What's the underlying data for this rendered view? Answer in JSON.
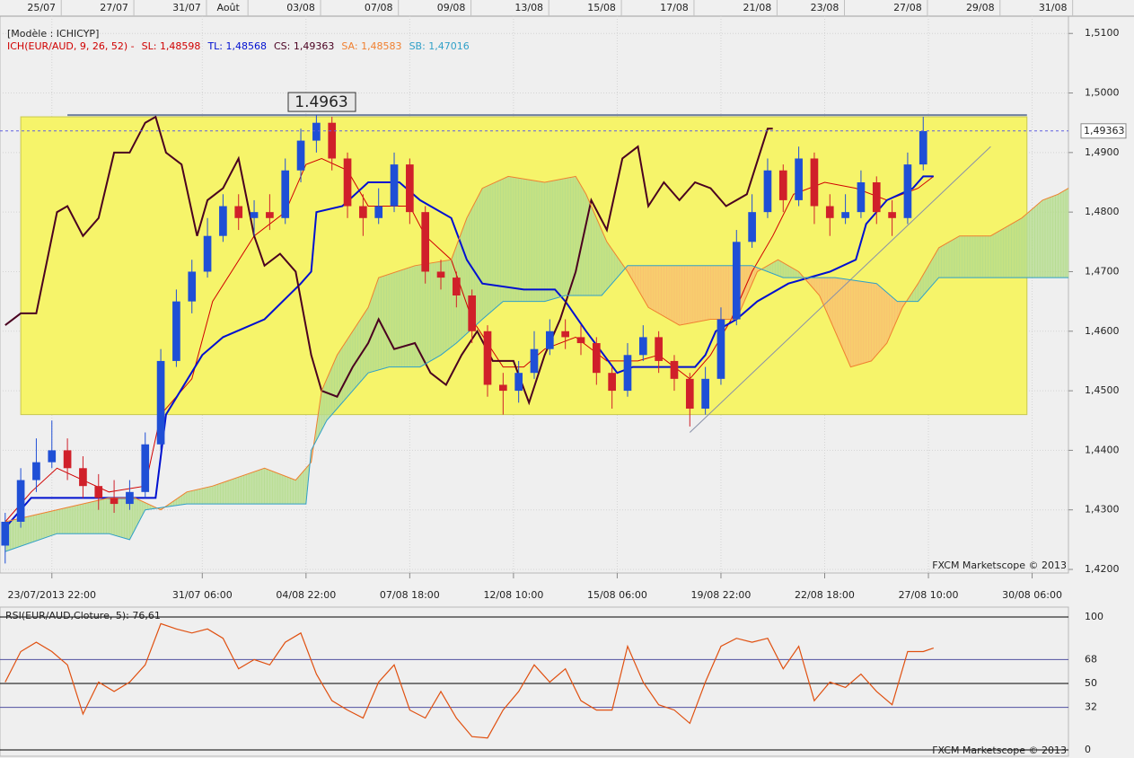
{
  "chart_data": [
    {
      "type": "candlestick",
      "model": "[Modèle : ICHICYP]",
      "indicator": "ICH(EUR/AUD, 9, 26, 52) -",
      "indicator_color": "#d00000",
      "watermark": "FXCM Marketscope © 2013",
      "up_color": "#1f4fd6",
      "down_color": "#d0202a",
      "x": [
        0,
        3,
        6,
        9,
        12,
        15,
        18,
        21,
        24,
        27,
        30,
        33,
        36,
        39,
        42,
        45,
        48,
        51,
        54,
        57,
        60,
        63,
        66,
        69,
        72,
        75,
        78,
        81,
        84,
        87,
        90,
        93,
        96,
        99,
        102,
        105,
        108,
        111,
        114,
        117,
        120,
        123,
        126,
        129,
        132,
        135,
        138,
        141,
        144,
        147,
        150,
        153,
        156,
        159,
        162,
        165,
        168,
        171,
        174,
        177
      ],
      "open": [
        1.424,
        1.428,
        1.435,
        1.438,
        1.44,
        1.437,
        1.434,
        1.432,
        1.431,
        1.433,
        1.441,
        1.455,
        1.465,
        1.47,
        1.476,
        1.481,
        1.479,
        1.48,
        1.479,
        1.487,
        1.492,
        1.495,
        1.489,
        1.481,
        1.479,
        1.481,
        1.488,
        1.48,
        1.47,
        1.469,
        1.466,
        1.46,
        1.451,
        1.45,
        1.453,
        1.457,
        1.46,
        1.459,
        1.458,
        1.453,
        1.45,
        1.456,
        1.459,
        1.455,
        1.452,
        1.447,
        1.452,
        1.462,
        1.475,
        1.48,
        1.487,
        1.482,
        1.489,
        1.481,
        1.479,
        1.48,
        1.485,
        1.48,
        1.479,
        1.488
      ],
      "high": [
        1.4295,
        1.437,
        1.442,
        1.445,
        1.442,
        1.439,
        1.436,
        1.435,
        1.435,
        1.443,
        1.457,
        1.467,
        1.472,
        1.479,
        1.483,
        1.483,
        1.482,
        1.483,
        1.489,
        1.494,
        1.4963,
        1.496,
        1.49,
        1.483,
        1.484,
        1.49,
        1.489,
        1.481,
        1.472,
        1.47,
        1.467,
        1.461,
        1.453,
        1.455,
        1.46,
        1.462,
        1.462,
        1.461,
        1.459,
        1.454,
        1.458,
        1.461,
        1.46,
        1.456,
        1.453,
        1.454,
        1.464,
        1.477,
        1.483,
        1.489,
        1.488,
        1.491,
        1.49,
        1.483,
        1.483,
        1.487,
        1.486,
        1.482,
        1.49,
        1.496
      ],
      "low": [
        1.421,
        1.427,
        1.433,
        1.437,
        1.435,
        1.432,
        1.43,
        1.4295,
        1.43,
        1.432,
        1.44,
        1.454,
        1.463,
        1.469,
        1.475,
        1.477,
        1.476,
        1.477,
        1.478,
        1.485,
        1.49,
        1.487,
        1.479,
        1.476,
        1.478,
        1.48,
        1.478,
        1.468,
        1.467,
        1.464,
        1.458,
        1.449,
        1.446,
        1.448,
        1.452,
        1.456,
        1.457,
        1.456,
        1.451,
        1.447,
        1.449,
        1.455,
        1.453,
        1.45,
        1.444,
        1.446,
        1.451,
        1.461,
        1.474,
        1.479,
        1.48,
        1.481,
        1.478,
        1.476,
        1.478,
        1.479,
        1.478,
        1.476,
        1.478,
        1.487
      ],
      "close": [
        1.428,
        1.435,
        1.438,
        1.44,
        1.437,
        1.434,
        1.432,
        1.431,
        1.433,
        1.441,
        1.455,
        1.465,
        1.47,
        1.476,
        1.481,
        1.479,
        1.48,
        1.479,
        1.487,
        1.492,
        1.495,
        1.489,
        1.481,
        1.479,
        1.481,
        1.488,
        1.48,
        1.47,
        1.469,
        1.466,
        1.46,
        1.451,
        1.45,
        1.453,
        1.457,
        1.46,
        1.459,
        1.458,
        1.453,
        1.45,
        1.456,
        1.459,
        1.455,
        1.452,
        1.447,
        1.452,
        1.462,
        1.475,
        1.48,
        1.487,
        1.482,
        1.489,
        1.481,
        1.479,
        1.48,
        1.485,
        1.48,
        1.479,
        1.488,
        1.4936
      ],
      "series": [
        {
          "name": "SL: 1,48598",
          "color": "#d00000",
          "x": [
            0,
            5,
            10,
            20,
            27,
            30,
            36,
            40,
            48,
            54,
            58,
            61,
            66,
            70,
            78,
            81,
            86,
            90,
            96,
            100,
            104,
            110,
            116,
            122,
            126,
            132,
            136,
            140,
            144,
            148,
            152,
            158,
            164,
            170,
            176,
            179
          ],
          "values": [
            1.428,
            1.433,
            1.437,
            1.433,
            1.434,
            1.446,
            1.452,
            1.465,
            1.476,
            1.48,
            1.488,
            1.489,
            1.487,
            1.481,
            1.481,
            1.476,
            1.472,
            1.462,
            1.454,
            1.454,
            1.457,
            1.459,
            1.455,
            1.455,
            1.456,
            1.452,
            1.456,
            1.462,
            1.47,
            1.476,
            1.483,
            1.485,
            1.484,
            1.482,
            1.484,
            1.486
          ]
        },
        {
          "name": "TL: 1,48568",
          "color": "#0010d0",
          "x": [
            0,
            5,
            29,
            31,
            38,
            42,
            50,
            57,
            59,
            60,
            65,
            70,
            76,
            80,
            86,
            89,
            92,
            100,
            106,
            108,
            112,
            118,
            121,
            133,
            135,
            137,
            141,
            145,
            151,
            159,
            164,
            166,
            170,
            175,
            177,
            179
          ],
          "values": [
            1.427,
            1.432,
            1.432,
            1.446,
            1.456,
            1.459,
            1.462,
            1.468,
            1.47,
            1.48,
            1.481,
            1.485,
            1.485,
            1.482,
            1.479,
            1.472,
            1.468,
            1.467,
            1.467,
            1.465,
            1.46,
            1.453,
            1.454,
            1.454,
            1.456,
            1.46,
            1.462,
            1.465,
            1.468,
            1.47,
            1.472,
            1.478,
            1.482,
            1.484,
            1.486,
            1.486
          ]
        },
        {
          "name": "CS: 1,49363",
          "color": "#4a0020",
          "x": [
            0,
            3,
            6,
            10,
            12,
            15,
            18,
            21,
            24,
            27,
            29,
            31,
            34,
            37,
            39,
            42,
            45,
            48,
            50,
            53,
            56,
            59,
            61,
            64,
            67,
            70,
            72,
            75,
            79,
            82,
            85,
            88,
            91,
            94,
            98,
            101,
            104,
            107,
            110,
            113,
            116,
            119,
            122,
            124,
            127,
            130,
            133,
            136,
            139,
            143,
            147,
            148
          ],
          "values": [
            1.461,
            1.463,
            1.463,
            1.48,
            1.481,
            1.476,
            1.479,
            1.49,
            1.49,
            1.495,
            1.496,
            1.49,
            1.488,
            1.476,
            1.482,
            1.484,
            1.489,
            1.476,
            1.471,
            1.473,
            1.47,
            1.456,
            1.45,
            1.449,
            1.454,
            1.458,
            1.462,
            1.457,
            1.458,
            1.453,
            1.451,
            1.456,
            1.46,
            1.455,
            1.455,
            1.448,
            1.456,
            1.462,
            1.47,
            1.482,
            1.477,
            1.489,
            1.491,
            1.481,
            1.485,
            1.482,
            1.485,
            1.484,
            1.481,
            1.483,
            1.494,
            1.494
          ]
        },
        {
          "name": "SA: 1,48583",
          "color": "#f08030",
          "x": [
            0,
            20,
            25,
            30,
            35,
            40,
            50,
            56,
            59,
            61,
            64,
            70,
            72,
            79,
            86,
            89,
            92,
            97,
            104,
            110,
            112,
            116,
            120,
            124,
            130,
            136,
            141,
            145,
            149,
            153,
            157,
            161,
            163,
            167,
            170,
            173,
            176,
            180,
            184,
            190,
            196,
            200,
            203,
            205
          ],
          "values": [
            1.428,
            1.432,
            1.432,
            1.43,
            1.433,
            1.434,
            1.437,
            1.435,
            1.438,
            1.45,
            1.456,
            1.464,
            1.469,
            1.471,
            1.472,
            1.479,
            1.484,
            1.486,
            1.485,
            1.486,
            1.483,
            1.475,
            1.47,
            1.464,
            1.461,
            1.462,
            1.462,
            1.47,
            1.472,
            1.47,
            1.466,
            1.458,
            1.454,
            1.455,
            1.458,
            1.464,
            1.468,
            1.474,
            1.476,
            1.476,
            1.479,
            1.482,
            1.483,
            1.484
          ]
        },
        {
          "name": "SB: 1,47016",
          "color": "#30a0c8",
          "x": [
            0,
            10,
            20,
            24,
            27,
            35,
            40,
            50,
            58,
            59,
            62,
            70,
            74,
            80,
            84,
            87,
            92,
            96,
            104,
            108,
            115,
            118,
            120,
            128,
            144,
            150,
            160,
            168,
            172,
            176,
            180,
            205
          ],
          "values": [
            1.423,
            1.426,
            1.426,
            1.425,
            1.43,
            1.431,
            1.431,
            1.431,
            1.431,
            1.44,
            1.445,
            1.453,
            1.454,
            1.454,
            1.456,
            1.458,
            1.462,
            1.465,
            1.465,
            1.466,
            1.466,
            1.469,
            1.471,
            1.471,
            1.471,
            1.469,
            1.469,
            1.468,
            1.465,
            1.465,
            1.469,
            1.469
          ]
        }
      ],
      "cloud_colors": [
        "#b4dc8c",
        "#f8c070"
      ],
      "zone": {
        "x": [
          3,
          197
        ],
        "y": [
          1.446,
          1.496
        ],
        "color": "#f6f46a"
      },
      "level": {
        "label": "1.4963",
        "value": 1.4963,
        "x": [
          12,
          197
        ]
      },
      "trend": {
        "x": [
          132,
          190
        ],
        "y": [
          1.443,
          1.491
        ]
      },
      "price": {
        "value": 1.49363,
        "label": "1,49363"
      },
      "xlim": [
        -1,
        205
      ],
      "ylim": [
        1.4194,
        1.5129
      ],
      "yticks": [
        {
          "value": 1.42,
          "label": "1,4200"
        },
        {
          "value": 1.43,
          "label": "1,4300"
        },
        {
          "value": 1.44,
          "label": "1,4400"
        },
        {
          "value": 1.45,
          "label": "1,4500"
        },
        {
          "value": 1.46,
          "label": "1,4600"
        },
        {
          "value": 1.47,
          "label": "1,4700"
        },
        {
          "value": 1.48,
          "label": "1,4800"
        },
        {
          "value": 1.49,
          "label": "1,4900"
        },
        {
          "value": 1.5,
          "label": "1,5000"
        },
        {
          "value": 1.51,
          "label": "1,5100"
        }
      ],
      "xticks": [
        {
          "value": 9,
          "label": "23/07/2013 22:00"
        },
        {
          "value": 38,
          "label": "31/07 06:00"
        },
        {
          "value": 58,
          "label": "04/08 22:00"
        },
        {
          "value": 78,
          "label": "07/08 18:00"
        },
        {
          "value": 98,
          "label": "12/08 10:00"
        },
        {
          "value": 118,
          "label": "15/08 06:00"
        },
        {
          "value": 138,
          "label": "19/08 22:00"
        },
        {
          "value": 158,
          "label": "22/08 18:00"
        },
        {
          "value": 178,
          "label": "27/08 10:00"
        },
        {
          "value": 198,
          "label": "30/08 06:00"
        }
      ],
      "x2ticks": [
        {
          "value": 7,
          "label": "25/07"
        },
        {
          "value": 21,
          "label": "27/07"
        },
        {
          "value": 35,
          "label": "31/07"
        },
        {
          "value": 43,
          "label": "Août"
        },
        {
          "value": 57,
          "label": "03/08"
        },
        {
          "value": 72,
          "label": "07/08"
        },
        {
          "value": 86,
          "label": "09/08"
        },
        {
          "value": 101,
          "label": "13/08"
        },
        {
          "value": 115,
          "label": "15/08"
        },
        {
          "value": 129,
          "label": "17/08"
        },
        {
          "value": 145,
          "label": "21/08"
        },
        {
          "value": 158,
          "label": "23/08"
        },
        {
          "value": 174,
          "label": "27/08"
        },
        {
          "value": 188,
          "label": "29/08"
        },
        {
          "value": 202,
          "label": "31/08"
        }
      ],
      "grid": true
    },
    {
      "type": "line",
      "title": "RSI(EUR/AUD,Cloture, 5): 76,61",
      "watermark": "FXCM Marketscope © 2013",
      "color": "#e05010",
      "x": [
        0,
        3,
        6,
        9,
        12,
        15,
        18,
        21,
        24,
        27,
        30,
        33,
        36,
        39,
        42,
        45,
        48,
        51,
        54,
        57,
        60,
        63,
        66,
        69,
        72,
        75,
        78,
        81,
        84,
        87,
        90,
        93,
        96,
        99,
        102,
        105,
        108,
        111,
        114,
        117,
        120,
        123,
        126,
        129,
        132,
        135,
        138,
        141,
        144,
        147,
        150,
        153,
        156,
        159,
        162,
        165,
        168,
        171,
        174,
        177,
        179
      ],
      "values": [
        51,
        74,
        81,
        74,
        64,
        27,
        51,
        44,
        51,
        64,
        95,
        91,
        88,
        91,
        84,
        61,
        68,
        64,
        81,
        88,
        57,
        37,
        30,
        24,
        51,
        64,
        30,
        24,
        44,
        24,
        10,
        9,
        30,
        44,
        64,
        51,
        61,
        37,
        30,
        30,
        78,
        51,
        34,
        30,
        20,
        51,
        78,
        84,
        81,
        84,
        61,
        78,
        37,
        51,
        47,
        57,
        44,
        34,
        74,
        74,
        76.61
      ],
      "xlim": [
        -1,
        205
      ],
      "ylim": [
        0,
        100
      ],
      "yticks": [
        0,
        32,
        50,
        68,
        100
      ],
      "ytick_colors": [
        "#000000",
        "#5050a0",
        "#000000",
        "#5050a0",
        "#000000"
      ]
    }
  ]
}
